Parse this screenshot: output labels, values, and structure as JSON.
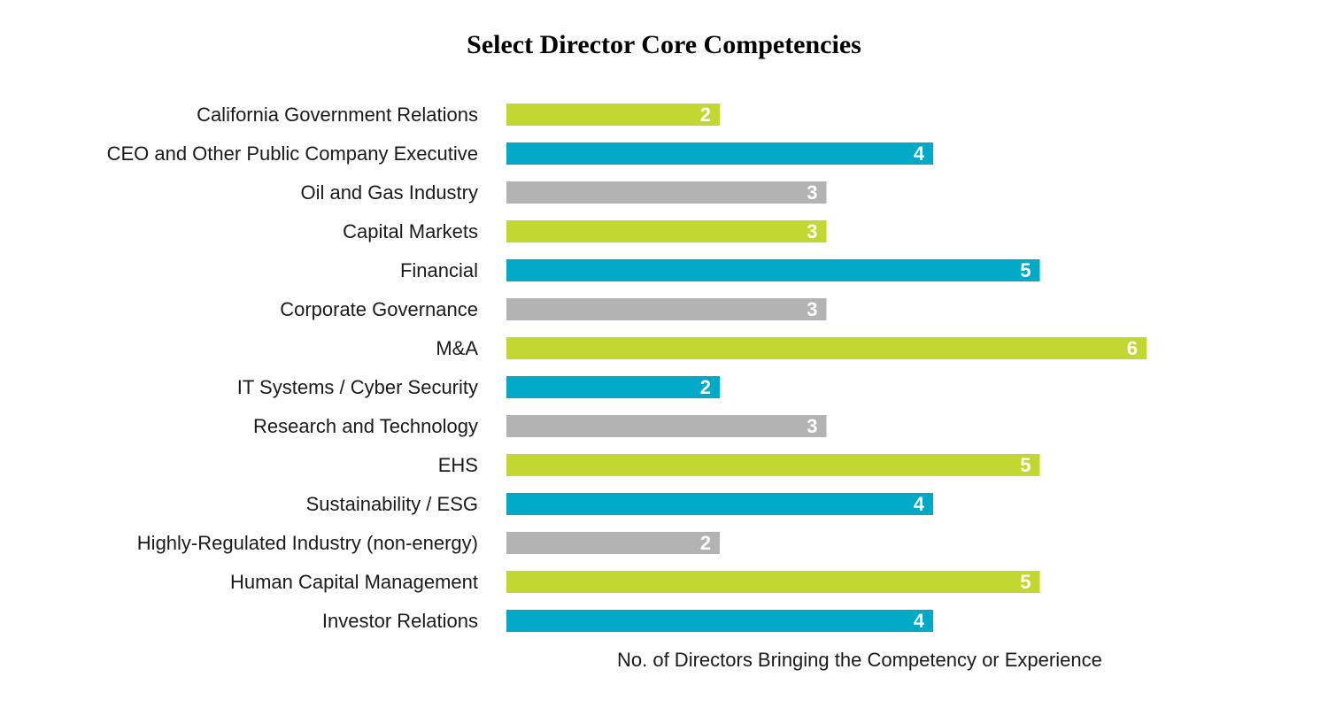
{
  "chart_data": {
    "type": "bar",
    "orientation": "horizontal",
    "title": "Select Director Core Competencies",
    "xlabel": "No. of Directors Bringing the Competency or Experience",
    "ylabel": "",
    "xlim": [
      0,
      6
    ],
    "grid": false,
    "legend": "none",
    "categories": [
      "California Government Relations",
      "CEO and Other Public Company Executive",
      "Oil and Gas Industry",
      "Capital Markets",
      "Financial",
      "Corporate Governance",
      "M&A",
      "IT Systems / Cyber Security",
      "Research and Technology",
      "EHS",
      "Sustainability / ESG",
      "Highly-Regulated Industry (non-energy)",
      "Human Capital Management",
      "Investor Relations"
    ],
    "values": [
      2,
      4,
      3,
      3,
      5,
      3,
      6,
      2,
      3,
      5,
      4,
      2,
      5,
      4
    ],
    "colors": [
      "#c2d732",
      "#00aac7",
      "#b3b3b3",
      "#c2d732",
      "#00aac7",
      "#b3b3b3",
      "#c2d732",
      "#00aac7",
      "#b3b3b3",
      "#c2d732",
      "#00aac7",
      "#b3b3b3",
      "#c2d732",
      "#00aac7"
    ],
    "value_label_color": "#ffffff"
  }
}
